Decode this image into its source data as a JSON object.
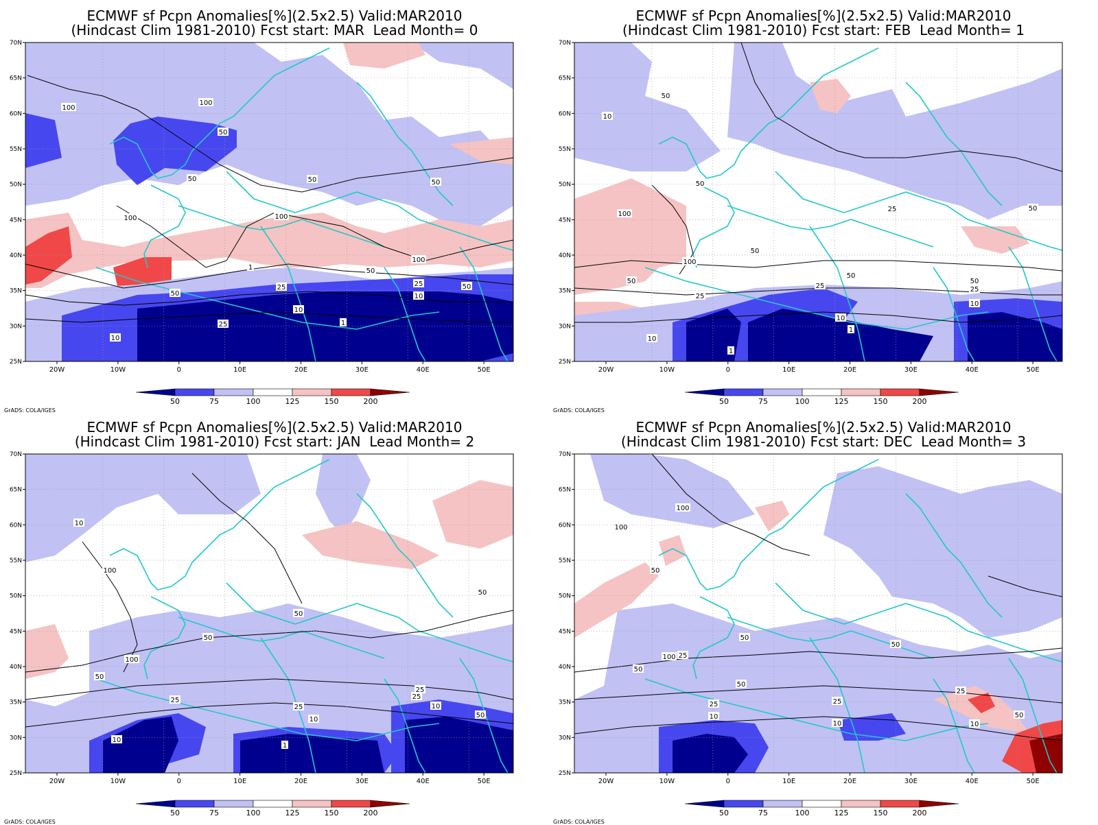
{
  "colors": {
    "lt50": "#00008f",
    "50_75": "#4747f0",
    "75_100": "#c1c1f4",
    "100_125": "#ffffff",
    "125_150": "#f5c3c3",
    "150_200": "#f04848",
    "gt200": "#8f0000",
    "coast": "#22c8c8",
    "contour": "#000000",
    "grid": "#9a9a9a"
  },
  "axes": {
    "lat_ticks": [
      "70N",
      "65N",
      "60N",
      "55N",
      "50N",
      "45N",
      "40N",
      "35N",
      "30N",
      "25N"
    ],
    "lon_ticks": [
      "20W",
      "10W",
      "0",
      "10E",
      "20E",
      "30E",
      "40E",
      "50E"
    ]
  },
  "colorbar": {
    "labels": [
      "50",
      "75",
      "100",
      "125",
      "150",
      "200"
    ]
  },
  "credit": "GrADS: COLA/IGES",
  "panels": [
    {
      "title_line1": "ECMWF sf Pcpn Anomalies[%](2.5x2.5) Valid:MAR2010",
      "title_line2": "(Hindcast Clim 1981-2010) Fcst start: MAR  Lead Month= 0",
      "contour_labels": [
        "100",
        "100",
        "50",
        "50",
        "50",
        "50",
        "100",
        "100",
        "100",
        "50",
        "25",
        "25",
        "50",
        "10",
        "10",
        "10",
        "25",
        "1",
        "1",
        "50"
      ]
    },
    {
      "title_line1": "ECMWF sf Pcpn Anomalies[%](2.5x2.5) Valid:MAR2010",
      "title_line2": "(Hindcast Clim 1981-2010) Fcst start: FEB  Lead Month= 1",
      "contour_labels": [
        "50",
        "10",
        "50",
        "25",
        "50",
        "100",
        "100",
        "50",
        "50",
        "25",
        "25",
        "50",
        "10",
        "10",
        "1",
        "1",
        "10",
        "25",
        "50"
      ]
    },
    {
      "title_line1": "ECMWF sf Pcpn Anomalies[%](2.5x2.5) Valid:MAR2010",
      "title_line2": "(Hindcast Clim 1981-2010) Fcst start: JAN  Lead Month= 2",
      "contour_labels": [
        "10",
        "100",
        "100",
        "50",
        "50",
        "50",
        "25",
        "25",
        "10",
        "10",
        "1",
        "10",
        "25",
        "50",
        "25",
        "50"
      ]
    },
    {
      "title_line1": "ECMWF sf Pcpn Anomalies[%](2.5x2.5) Valid:MAR2010",
      "title_line2": "(Hindcast Clim 1981-2010) Fcst start: DEC  Lead Month= 3",
      "contour_labels": [
        "100",
        "100",
        "50",
        "25",
        "50",
        "50",
        "100",
        "50",
        "50",
        "25",
        "10",
        "25",
        "10",
        "10",
        "25",
        "50"
      ]
    }
  ]
}
